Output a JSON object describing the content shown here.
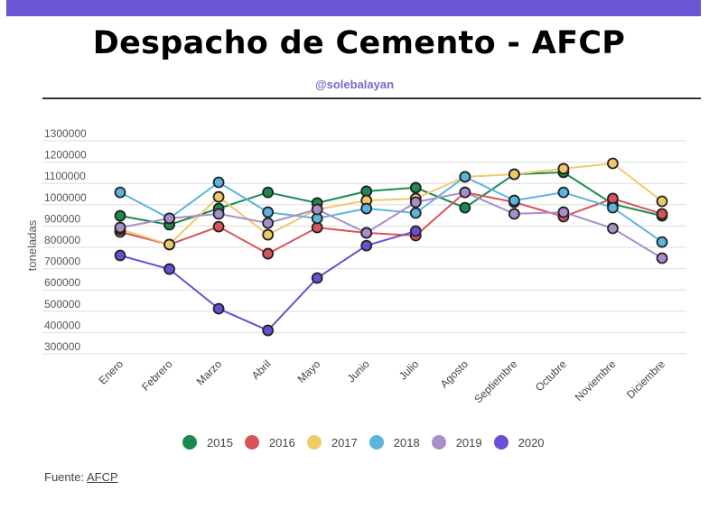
{
  "header": {
    "title": "Despacho de Cemento - AFCP",
    "subtitle": "@solebalayan"
  },
  "footer": {
    "source_label": "Fuente:",
    "source_link": "AFCP"
  },
  "chart_data": {
    "type": "line",
    "title": "Despacho de Cemento - AFCP",
    "subtitle": "@solebalayan",
    "xlabel": "",
    "ylabel": "toneladas",
    "ylim": [
      300000,
      1300000
    ],
    "yticks": [
      "1300000",
      "1200000",
      "1100000",
      "1000000",
      "900000",
      "800000",
      "700000",
      "600000",
      "500000",
      "400000",
      "300000"
    ],
    "ytick_values": [
      1300000,
      1200000,
      1100000,
      1000000,
      900000,
      800000,
      700000,
      600000,
      500000,
      400000,
      300000
    ],
    "grid": true,
    "legend_position": "bottom",
    "categories": [
      "Enero",
      "Febrero",
      "Marzo",
      "Abril",
      "Mayo",
      "Junio",
      "Julio",
      "Agosto",
      "Septiembre",
      "Octubre",
      "Noviembre",
      "Diciembre"
    ],
    "series": [
      {
        "name": "2015",
        "color": "#1a8a4f",
        "values": [
          948000,
          906000,
          982000,
          1058000,
          1008000,
          1063000,
          1080000,
          986000,
          1143000,
          1152000,
          1003000,
          948000
        ]
      },
      {
        "name": "2016",
        "color": "#d9545a",
        "values": [
          872000,
          813000,
          897000,
          770000,
          893000,
          868000,
          855000,
          1058000,
          1012000,
          944000,
          1029000,
          957000
        ]
      },
      {
        "name": "2017",
        "color": "#f0c96a",
        "values": [
          885000,
          813000,
          1037000,
          859000,
          978000,
          1020000,
          1029000,
          1131000,
          1143000,
          1169000,
          1194000,
          1016000
        ]
      },
      {
        "name": "2018",
        "color": "#5bb4e0",
        "values": [
          1058000,
          936000,
          1105000,
          965000,
          936000,
          982000,
          961000,
          1131000,
          1020000,
          1058000,
          986000,
          825000
        ]
      },
      {
        "name": "2019",
        "color": "#a98fc9",
        "values": [
          893000,
          936000,
          957000,
          914000,
          978000,
          868000,
          1012000,
          1058000,
          957000,
          965000,
          889000,
          749000
        ]
      },
      {
        "name": "2020",
        "color": "#6a4fd1",
        "values": [
          762000,
          698000,
          512000,
          410000,
          656000,
          808000,
          876000,
          null,
          null,
          null,
          null,
          null
        ]
      }
    ]
  }
}
